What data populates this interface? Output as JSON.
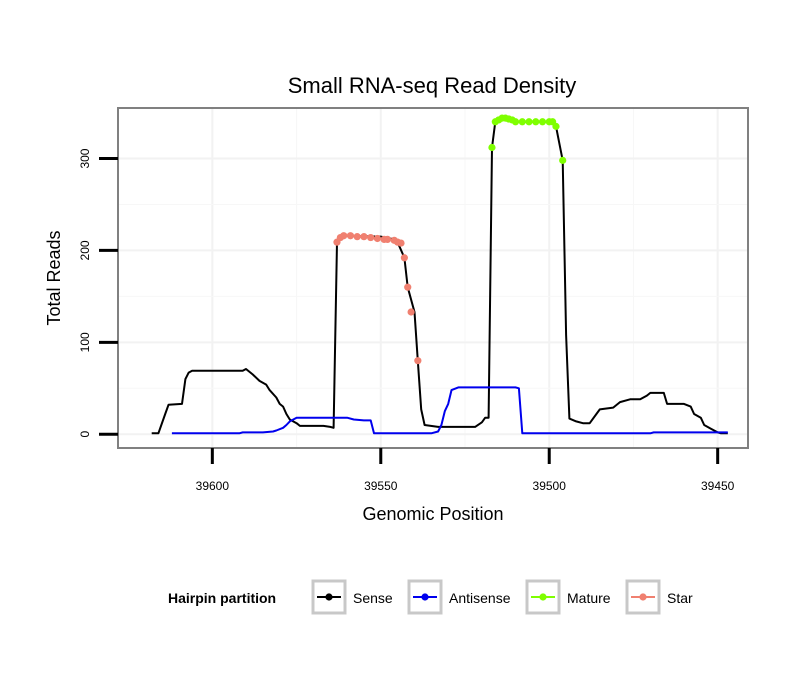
{
  "chart_data": {
    "type": "line",
    "title": "Small RNA-seq Read Density",
    "xlabel": "Genomic Position",
    "ylabel": "Total Reads",
    "xlim": [
      39628,
      39441
    ],
    "ylim": [
      -15,
      355
    ],
    "x_reversed": true,
    "x_ticks": [
      39600,
      39550,
      39500,
      39450
    ],
    "y_ticks": [
      0,
      100,
      200,
      300
    ],
    "grid": true,
    "legend": {
      "title": "Hairpin partition",
      "position": "bottom",
      "entries": [
        "Sense",
        "Antisense",
        "Mature",
        "Star"
      ]
    },
    "series": [
      {
        "name": "Sense",
        "color": "#000000",
        "markers": false,
        "points": [
          [
            39618,
            1
          ],
          [
            39616,
            1
          ],
          [
            39614,
            22
          ],
          [
            39613,
            32
          ],
          [
            39609,
            33
          ],
          [
            39608,
            60
          ],
          [
            39607,
            67
          ],
          [
            39606,
            69
          ],
          [
            39591,
            69
          ],
          [
            39590,
            71
          ],
          [
            39588,
            65
          ],
          [
            39586,
            58
          ],
          [
            39584,
            54
          ],
          [
            39583,
            48
          ],
          [
            39581,
            40
          ],
          [
            39580,
            33
          ],
          [
            39579,
            30
          ],
          [
            39578,
            22
          ],
          [
            39577,
            16
          ],
          [
            39575,
            12
          ],
          [
            39574,
            9
          ],
          [
            39567,
            9
          ],
          [
            39565,
            8
          ],
          [
            39564,
            7
          ],
          [
            39563,
            209
          ],
          [
            39561,
            216
          ],
          [
            39550,
            215
          ],
          [
            39546,
            212
          ],
          [
            39545,
            209
          ],
          [
            39543,
            192
          ],
          [
            39542,
            160
          ],
          [
            39540,
            133
          ],
          [
            39539,
            80
          ],
          [
            39538,
            27
          ],
          [
            39537,
            10
          ],
          [
            39533,
            8
          ],
          [
            39522,
            8
          ],
          [
            39520,
            13
          ],
          [
            39519,
            18
          ],
          [
            39518,
            18
          ],
          [
            39517,
            312
          ],
          [
            39516,
            340
          ],
          [
            39515,
            342
          ],
          [
            39514,
            344
          ],
          [
            39511,
            342
          ],
          [
            39510,
            340
          ],
          [
            39499,
            340
          ],
          [
            39498,
            335
          ],
          [
            39496,
            298
          ],
          [
            39495,
            108
          ],
          [
            39494,
            17
          ],
          [
            39492,
            14
          ],
          [
            39490,
            12
          ],
          [
            39488,
            12
          ],
          [
            39486,
            22
          ],
          [
            39485,
            27
          ],
          [
            39481,
            29
          ],
          [
            39479,
            35
          ],
          [
            39476,
            38
          ],
          [
            39473,
            38
          ],
          [
            39471,
            42
          ],
          [
            39470,
            45
          ],
          [
            39466,
            45
          ],
          [
            39465,
            33
          ],
          [
            39460,
            33
          ],
          [
            39458,
            30
          ],
          [
            39457,
            22
          ],
          [
            39455,
            18
          ],
          [
            39454,
            10
          ],
          [
            39452,
            6
          ],
          [
            39450,
            2
          ],
          [
            39449,
            1
          ],
          [
            39447,
            1
          ]
        ]
      },
      {
        "name": "Antisense",
        "color": "#0000ee",
        "markers": false,
        "points": [
          [
            39612,
            1
          ],
          [
            39592,
            1
          ],
          [
            39591,
            2
          ],
          [
            39585,
            2
          ],
          [
            39582,
            3
          ],
          [
            39581,
            4
          ],
          [
            39579,
            7
          ],
          [
            39578,
            10
          ],
          [
            39577,
            14
          ],
          [
            39575,
            18
          ],
          [
            39560,
            18
          ],
          [
            39558,
            16
          ],
          [
            39555,
            15
          ],
          [
            39553,
            15
          ],
          [
            39552,
            1
          ],
          [
            39535,
            1
          ],
          [
            39533,
            3
          ],
          [
            39532,
            10
          ],
          [
            39531,
            25
          ],
          [
            39530,
            33
          ],
          [
            39529,
            48
          ],
          [
            39527,
            51
          ],
          [
            39510,
            51
          ],
          [
            39509,
            50
          ],
          [
            39508,
            1
          ],
          [
            39488,
            1
          ],
          [
            39470,
            1
          ],
          [
            39469,
            2
          ],
          [
            39447,
            2
          ]
        ]
      },
      {
        "name": "Mature",
        "color": "#7fff00",
        "markers": true,
        "points": [
          [
            39516,
            340
          ],
          [
            39515,
            342
          ],
          [
            39514,
            344
          ],
          [
            39513,
            344
          ],
          [
            39512,
            343
          ],
          [
            39511,
            342
          ],
          [
            39510,
            340
          ],
          [
            39508,
            340
          ],
          [
            39506,
            340
          ],
          [
            39504,
            340
          ],
          [
            39502,
            340
          ],
          [
            39500,
            340
          ],
          [
            39499,
            340
          ],
          [
            39498,
            335
          ],
          [
            39517,
            312
          ],
          [
            39496,
            298
          ]
        ]
      },
      {
        "name": "Star",
        "color": "#f08070",
        "markers": true,
        "points": [
          [
            39563,
            209
          ],
          [
            39562,
            214
          ],
          [
            39561,
            216
          ],
          [
            39559,
            216
          ],
          [
            39557,
            215
          ],
          [
            39555,
            215
          ],
          [
            39553,
            214
          ],
          [
            39551,
            213
          ],
          [
            39549,
            212
          ],
          [
            39548,
            212
          ],
          [
            39546,
            211
          ],
          [
            39545,
            209
          ],
          [
            39544,
            208
          ],
          [
            39543,
            192
          ],
          [
            39542,
            160
          ],
          [
            39541,
            133
          ],
          [
            39539,
            80
          ]
        ]
      }
    ]
  }
}
